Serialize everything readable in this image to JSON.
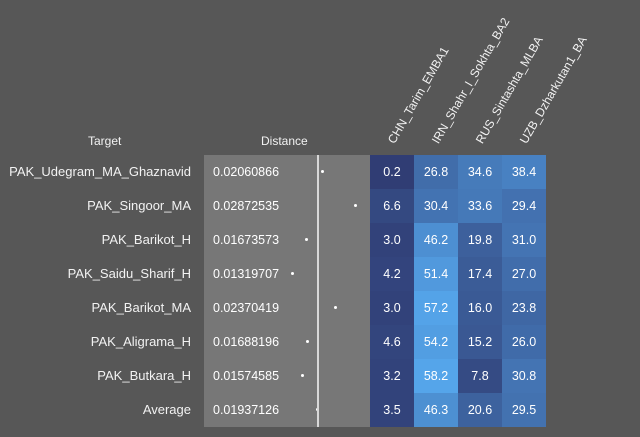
{
  "headers": {
    "target": "Target",
    "distance": "Distance",
    "sources": [
      "CHN_Tarim_EMBA1",
      "IRN_Shahr_I_Sokhta_BA2",
      "RUS_Sintashta_MLBA",
      "UZB_Dzharkutan1_BA"
    ]
  },
  "rows": [
    {
      "target": "PAK_Udegram_MA_Ghaznavid",
      "distance": "0.02060866",
      "values": [
        "0.2",
        "26.8",
        "34.6",
        "38.4"
      ]
    },
    {
      "target": "PAK_Singoor_MA",
      "distance": "0.02872535",
      "values": [
        "6.6",
        "30.4",
        "33.6",
        "29.4"
      ]
    },
    {
      "target": "PAK_Barikot_H",
      "distance": "0.01673573",
      "values": [
        "3.0",
        "46.2",
        "19.8",
        "31.0"
      ]
    },
    {
      "target": "PAK_Saidu_Sharif_H",
      "distance": "0.01319707",
      "values": [
        "4.2",
        "51.4",
        "17.4",
        "27.0"
      ]
    },
    {
      "target": "PAK_Barikot_MA",
      "distance": "0.02370419",
      "values": [
        "3.0",
        "57.2",
        "16.0",
        "23.8"
      ]
    },
    {
      "target": "PAK_Aligrama_H",
      "distance": "0.01688196",
      "values": [
        "4.6",
        "54.2",
        "15.2",
        "26.0"
      ]
    },
    {
      "target": "PAK_Butkara_H",
      "distance": "0.01574585",
      "values": [
        "3.2",
        "58.2",
        "7.8",
        "30.8"
      ]
    },
    {
      "target": "Average",
      "distance": "0.01937126",
      "values": [
        "3.5",
        "46.3",
        "20.6",
        "29.5"
      ]
    }
  ]
}
